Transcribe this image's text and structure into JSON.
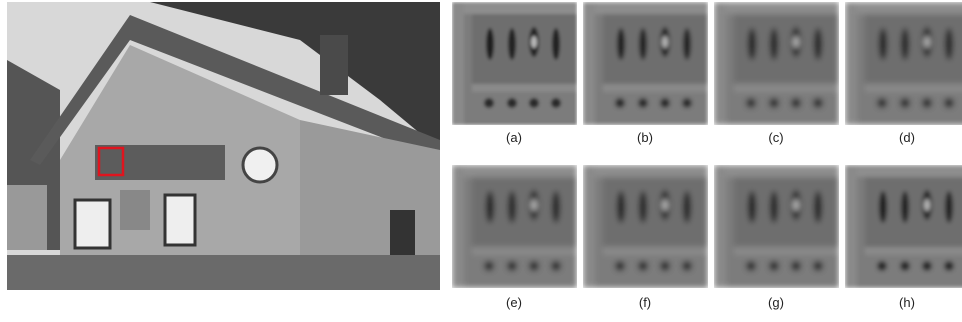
{
  "figure": {
    "panels": [
      {
        "label": "(a)"
      },
      {
        "label": "(b)"
      },
      {
        "label": "(c)"
      },
      {
        "label": "(d)"
      },
      {
        "label": "(e)"
      },
      {
        "label": "(f)"
      },
      {
        "label": "(g)"
      },
      {
        "label": "(h)"
      }
    ]
  }
}
